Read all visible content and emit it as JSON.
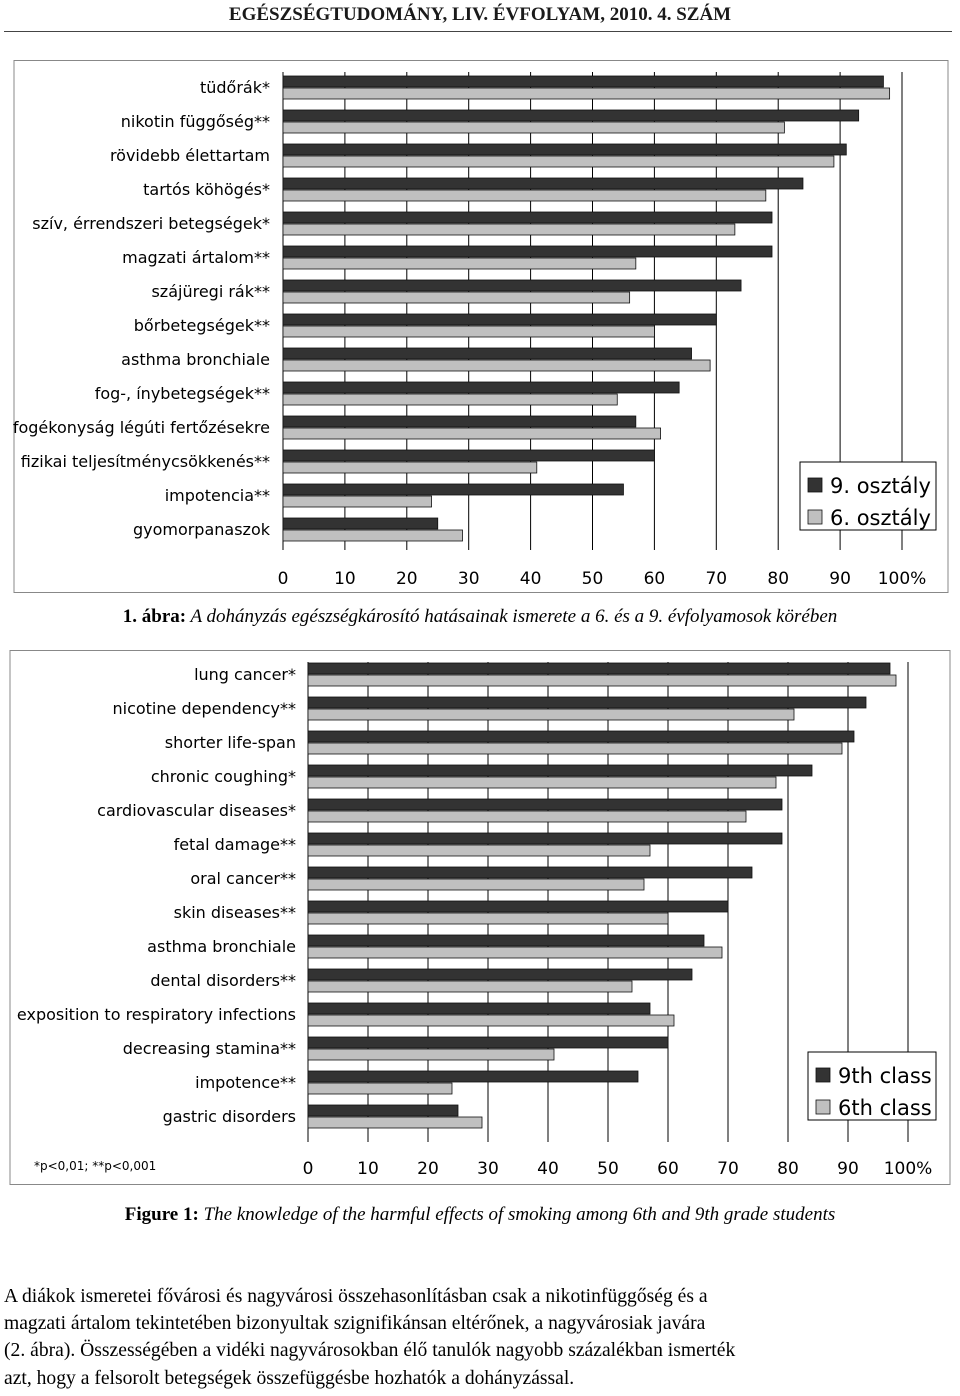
{
  "header": {
    "title": "EGÉSZSÉGTUDOMÁNY, LIV. ÉVFOLYAM, 2010. 4. SZÁM"
  },
  "colors": {
    "dark_bar": "#333333",
    "light_bar": "#c0c0c0",
    "grid": "#000000"
  },
  "chart_data": [
    {
      "type": "bar",
      "orientation": "horizontal",
      "categories": [
        "tüdőrák*",
        "nikotin függőség**",
        "rövidebb élettartam",
        "tartós köhögés*",
        "szív, érrendszeri betegségek*",
        "magzati ártalom**",
        "szájüregi rák**",
        "bőrbetegségek**",
        "asthma bronchiale",
        "fog-, ínybetegségek**",
        "fogékonyság légúti fertőzésekre",
        "fizikai teljesítménycsökkenés**",
        "impotencia**",
        "gyomorpanaszok"
      ],
      "series": [
        {
          "name": "9. osztály",
          "values": [
            97,
            93,
            91,
            84,
            79,
            79,
            74,
            70,
            66,
            64,
            57,
            60,
            55,
            25
          ]
        },
        {
          "name": "6. osztály",
          "values": [
            98,
            81,
            89,
            78,
            73,
            57,
            56,
            60,
            69,
            54,
            61,
            41,
            24,
            29
          ]
        }
      ],
      "xticks": [
        "0",
        "10",
        "20",
        "30",
        "40",
        "50",
        "60",
        "70",
        "80",
        "90",
        "100%"
      ],
      "xlim": [
        0,
        100
      ],
      "grid": true,
      "legend": "bottom-right",
      "footnote": ""
    },
    {
      "type": "bar",
      "orientation": "horizontal",
      "categories": [
        "lung cancer*",
        "nicotine dependency**",
        "shorter life-span",
        "chronic coughing*",
        "cardiovascular diseases*",
        "fetal damage**",
        "oral cancer**",
        "skin diseases**",
        "asthma bronchiale",
        "dental disorders**",
        "exposition to respiratory infections",
        "decreasing stamina**",
        "impotence**",
        "gastric disorders"
      ],
      "series": [
        {
          "name": "9th class",
          "values": [
            97,
            93,
            91,
            84,
            79,
            79,
            74,
            70,
            66,
            64,
            57,
            60,
            55,
            25
          ]
        },
        {
          "name": "6th class",
          "values": [
            98,
            81,
            89,
            78,
            73,
            57,
            56,
            60,
            69,
            54,
            61,
            41,
            24,
            29
          ]
        }
      ],
      "xticks": [
        "0",
        "10",
        "20",
        "30",
        "40",
        "50",
        "60",
        "70",
        "80",
        "90",
        "100%"
      ],
      "xlim": [
        0,
        100
      ],
      "grid": true,
      "legend": "bottom-right",
      "footnote": "*p<0,01;   **p<0,001"
    }
  ],
  "captions": {
    "fig1_label": "1. ábra:",
    "fig1_text": " A dohányzás egészségkárosító hatásainak ismerete a 6. és a 9. évfolyamosok körében",
    "fig2_label": "Figure 1:",
    "fig2_text": " The knowledge of the harmful effects of smoking among 6th and 9th grade students"
  },
  "body_text": {
    "line1": "A diákok ismeretei fővárosi és nagyvárosi összehasonlításban csak a nikotinfüggőség és a",
    "line2": "magzati ártalom tekintetében bizonyultak szignifikánsan eltérőnek, a nagyvárosiak javára",
    "line3": "(2. ábra). Összességében a vidéki nagyvárosokban élő tanulók nagyobb százalékban ismerték",
    "line4": "azt, hogy a felsorolt betegségek összefüggésbe hozhatók a dohányzással."
  }
}
